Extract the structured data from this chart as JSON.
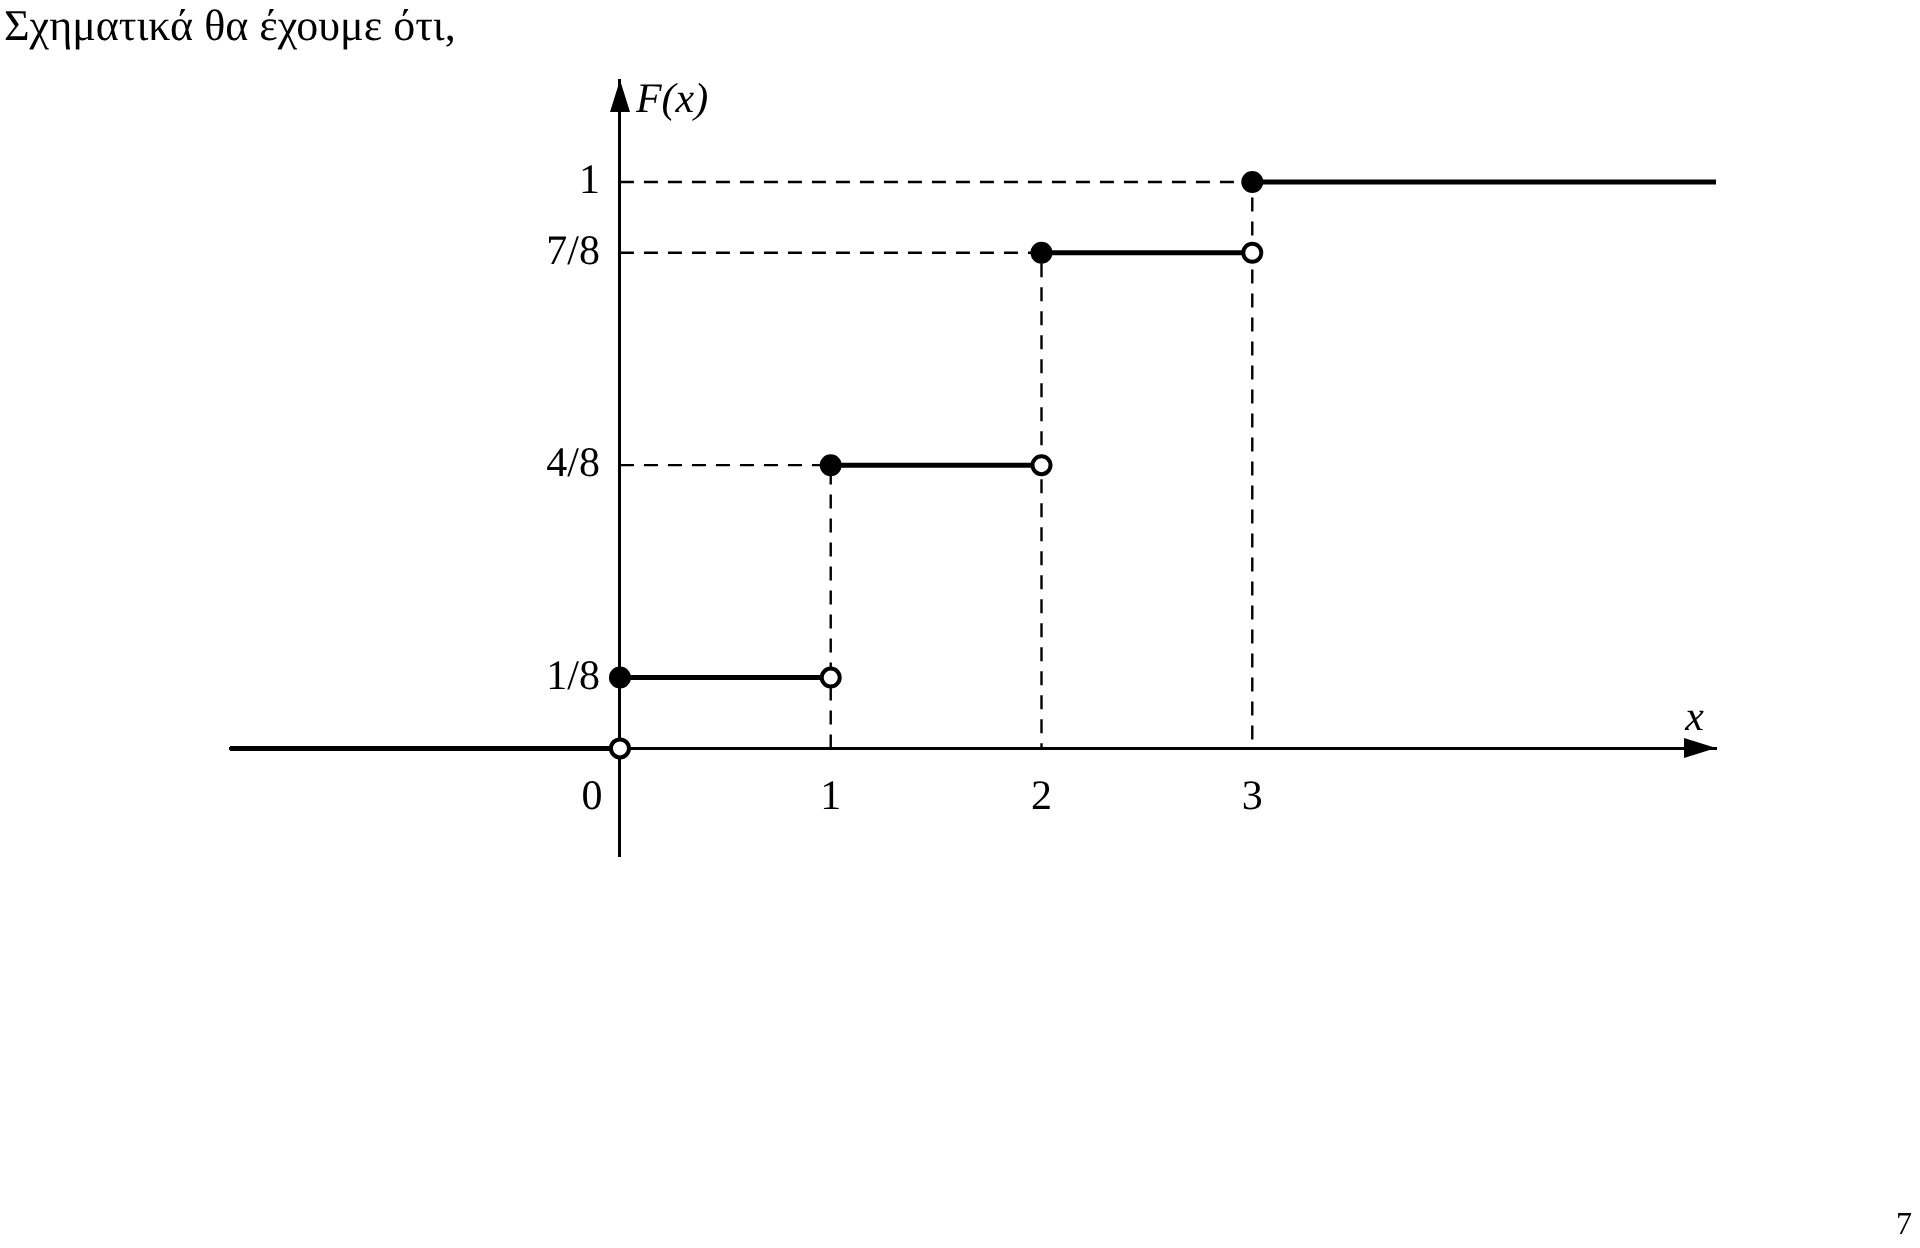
{
  "chart_data": {
    "type": "step",
    "title": "Σχηματικά θα έχουμε ότι,",
    "xlabel": "x",
    "ylabel": "F(x)",
    "xlim": [
      -1.85,
      5.2
    ],
    "ylim": [
      -0.19,
      1.18
    ],
    "xticks": [
      0,
      1,
      2,
      3
    ],
    "yticks": [
      {
        "value": 0.125,
        "label": "1/8"
      },
      {
        "value": 0.5,
        "label": "4/8"
      },
      {
        "value": 0.875,
        "label": "7/8"
      },
      {
        "value": 1,
        "label": "1"
      }
    ],
    "grid": false,
    "legend": false,
    "series": [
      {
        "color": "#000000",
        "x": [
          -1.85,
          0
        ],
        "values": [
          0,
          0
        ]
      },
      {
        "color": "#000000",
        "x": [
          0,
          1
        ],
        "values": [
          0.125,
          0.125
        ]
      },
      {
        "color": "#000000",
        "x": [
          1,
          2
        ],
        "values": [
          0.5,
          0.5
        ]
      },
      {
        "color": "#000000",
        "x": [
          2,
          3
        ],
        "values": [
          0.875,
          0.875
        ]
      },
      {
        "color": "#000000",
        "x": [
          3,
          5.2
        ],
        "values": [
          1,
          1
        ]
      },
      {
        "type": "line",
        "line_style": "dashed",
        "color": "#000000",
        "x": [
          0,
          1,
          1
        ],
        "values": [
          0.5,
          0.5,
          0
        ]
      },
      {
        "type": "line",
        "line_style": "dashed",
        "color": "#000000",
        "x": [
          0,
          2,
          2
        ],
        "values": [
          0.875,
          0.875,
          0
        ]
      },
      {
        "type": "line",
        "line_style": "dashed",
        "color": "#000000",
        "x": [
          0,
          3,
          3
        ],
        "values": [
          1,
          1,
          0
        ]
      },
      {
        "type": "scatter",
        "marker": "circle",
        "color": "#000000",
        "x": [
          0,
          1,
          2,
          3
        ],
        "values": [
          0.125,
          0.5,
          0.875,
          1
        ]
      },
      {
        "type": "scatter",
        "marker": "circle",
        "color": "#ffffff",
        "x": [
          0,
          1,
          2,
          3
        ],
        "values": [
          0,
          0.125,
          0.5,
          0.875
        ]
      }
    ],
    "annotations": [
      "7"
    ]
  }
}
